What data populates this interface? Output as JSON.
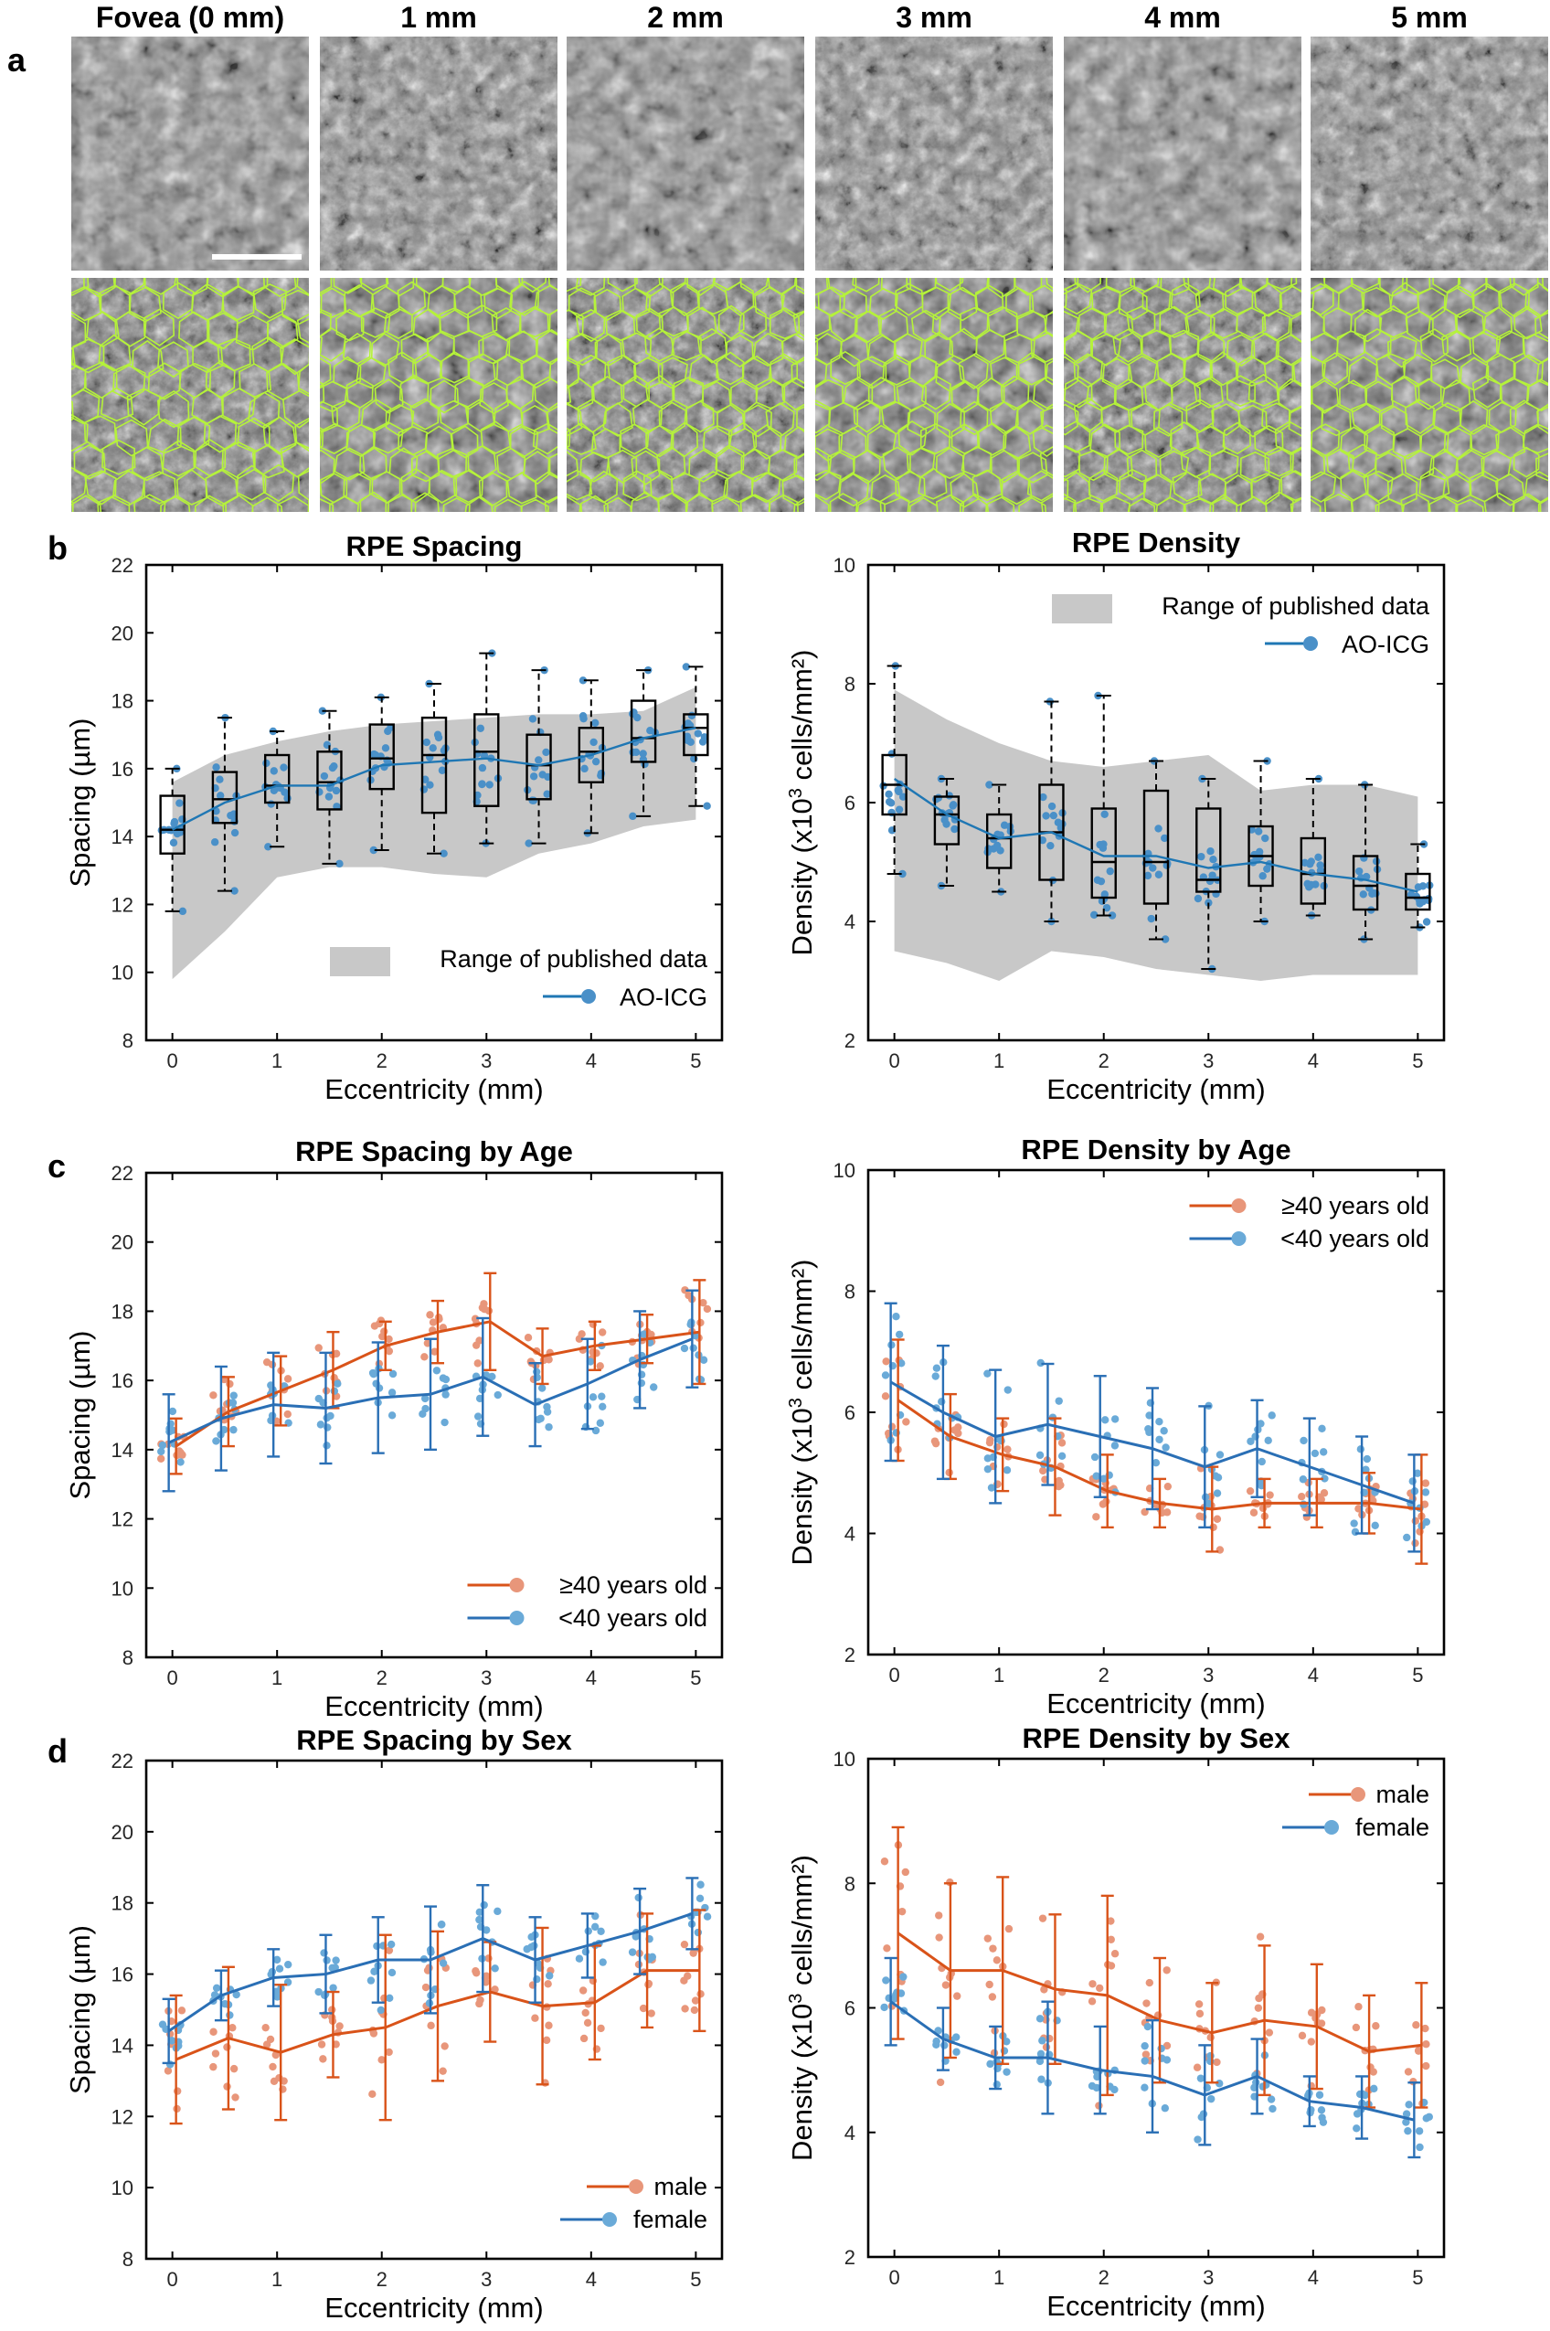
{
  "panel_labels": {
    "a": "a",
    "b": "b",
    "c": "c",
    "d": "d"
  },
  "images": {
    "column_labels": [
      "Fovea (0 mm)",
      "1 mm",
      "2 mm",
      "3 mm",
      "4 mm",
      "5 mm"
    ],
    "rows": [
      "raw",
      "segmented"
    ]
  },
  "colors": {
    "published_range": "#c8c8c8",
    "ao_icg": "#1f77b4",
    "ao_icg_point": "#4a90c8",
    "older_male": "#d95319",
    "older_male_point": "#e8967a",
    "younger_female": "#2a6fb5",
    "younger_female_point": "#6aaad8",
    "cell_border": "#b5f23a"
  },
  "chart_data": [
    {
      "id": "spacing",
      "type": "box",
      "title": "RPE Spacing",
      "xlabel": "Eccentricity (mm)",
      "ylabel": "Spacing (µm)",
      "xlim": [
        -0.25,
        5.25
      ],
      "ylim": [
        8,
        22
      ],
      "xticks": [
        0,
        1,
        2,
        3,
        4,
        5
      ],
      "yticks": [
        8,
        10,
        12,
        14,
        16,
        18,
        20,
        22
      ],
      "x": [
        0,
        0.5,
        1,
        1.5,
        2,
        2.5,
        3,
        3.5,
        4,
        4.5,
        5
      ],
      "range_low": [
        9.8,
        11.2,
        12.8,
        13.1,
        13.1,
        12.9,
        12.8,
        13.5,
        13.8,
        14.3,
        14.5
      ],
      "range_high": [
        15.6,
        16.4,
        16.8,
        17.1,
        17.3,
        17.4,
        17.5,
        17.6,
        17.6,
        17.7,
        18.4
      ],
      "median": [
        14.2,
        15.1,
        15.5,
        15.6,
        16.3,
        16.4,
        16.5,
        16.1,
        16.5,
        16.9,
        17.2
      ],
      "q1": [
        13.5,
        14.4,
        15.0,
        14.8,
        15.4,
        14.7,
        14.9,
        15.1,
        15.6,
        16.2,
        16.4
      ],
      "q3": [
        15.2,
        15.9,
        16.4,
        16.5,
        17.3,
        17.5,
        17.6,
        17.0,
        17.2,
        18.0,
        17.6
      ],
      "whisker_low": [
        11.8,
        12.4,
        13.7,
        13.2,
        13.6,
        13.5,
        13.8,
        13.8,
        14.1,
        14.6,
        14.9
      ],
      "whisker_high": [
        16.0,
        17.5,
        17.1,
        17.7,
        18.1,
        18.5,
        19.4,
        18.9,
        18.6,
        18.9,
        19.0
      ],
      "mean_line": [
        14.2,
        15.0,
        15.5,
        15.5,
        16.1,
        16.2,
        16.3,
        16.1,
        16.4,
        16.9,
        17.2
      ],
      "legend": [
        "Range of published data",
        "AO-ICG"
      ],
      "legend_position": "bottom-right"
    },
    {
      "id": "density",
      "type": "box",
      "title": "RPE Density",
      "xlabel": "Eccentricity (mm)",
      "ylabel_main": "Density (x10",
      "ylabel_sup": "3",
      "ylabel_tail": " cells/mm²)",
      "xlim": [
        -0.25,
        5.25
      ],
      "ylim": [
        2,
        10
      ],
      "xticks": [
        0,
        1,
        2,
        3,
        4,
        5
      ],
      "yticks": [
        2,
        4,
        6,
        8,
        10
      ],
      "x": [
        0,
        0.5,
        1,
        1.5,
        2,
        2.5,
        3,
        3.5,
        4,
        4.5,
        5
      ],
      "range_low": [
        3.5,
        3.3,
        3.0,
        3.5,
        3.4,
        3.2,
        3.1,
        3.0,
        3.1,
        3.1,
        3.1
      ],
      "range_high": [
        7.9,
        7.4,
        7.0,
        6.7,
        6.6,
        6.7,
        6.8,
        6.2,
        6.3,
        6.3,
        6.1
      ],
      "median": [
        6.3,
        5.8,
        5.4,
        5.5,
        5.0,
        5.0,
        4.7,
        5.1,
        4.8,
        4.6,
        4.4
      ],
      "q1": [
        5.8,
        5.3,
        4.9,
        4.7,
        4.4,
        4.3,
        4.5,
        4.6,
        4.3,
        4.2,
        4.2
      ],
      "q3": [
        6.8,
        6.1,
        5.8,
        6.3,
        5.9,
        6.2,
        5.9,
        5.6,
        5.4,
        5.1,
        4.8
      ],
      "whisker_low": [
        4.8,
        4.6,
        4.5,
        4.0,
        4.1,
        3.7,
        3.2,
        4.0,
        4.1,
        3.7,
        3.9
      ],
      "whisker_high": [
        8.3,
        6.4,
        6.3,
        7.7,
        7.8,
        6.7,
        6.4,
        6.7,
        6.4,
        6.3,
        5.3
      ],
      "mean_line": [
        6.4,
        5.8,
        5.4,
        5.5,
        5.1,
        5.1,
        4.9,
        5.0,
        4.8,
        4.7,
        4.5
      ],
      "legend": [
        "Range of published data",
        "AO-ICG"
      ],
      "legend_position": "top-right"
    },
    {
      "id": "spacing_age",
      "type": "line",
      "title": "RPE Spacing by Age",
      "xlabel": "Eccentricity (mm)",
      "ylabel": "Spacing (µm)",
      "xlim": [
        -0.25,
        5.25
      ],
      "ylim": [
        8,
        22
      ],
      "xticks": [
        0,
        1,
        2,
        3,
        4,
        5
      ],
      "yticks": [
        8,
        10,
        12,
        14,
        16,
        18,
        20,
        22
      ],
      "x": [
        0,
        0.5,
        1,
        1.5,
        2,
        2.5,
        3,
        3.5,
        4,
        4.5,
        5
      ],
      "series": [
        {
          "name": "≥40 years old",
          "color_key": "older_male",
          "values": [
            14.1,
            15.1,
            15.7,
            16.3,
            17.0,
            17.4,
            17.7,
            16.7,
            17.0,
            17.2,
            17.4
          ],
          "err": [
            0.8,
            1.0,
            1.0,
            1.1,
            0.7,
            0.9,
            1.4,
            0.8,
            0.7,
            0.7,
            1.5
          ]
        },
        {
          "name": "<40 years old",
          "color_key": "younger_female",
          "values": [
            14.2,
            14.9,
            15.3,
            15.2,
            15.5,
            15.6,
            16.1,
            15.3,
            15.9,
            16.6,
            17.2
          ],
          "err": [
            1.4,
            1.5,
            1.5,
            1.6,
            1.6,
            1.6,
            1.7,
            1.2,
            1.3,
            1.4,
            1.4
          ]
        }
      ],
      "legend_position": "bottom-right"
    },
    {
      "id": "density_age",
      "type": "line",
      "title": "RPE Density by Age",
      "xlabel": "Eccentricity (mm)",
      "ylabel_main": "Density (x10",
      "ylabel_sup": "3",
      "ylabel_tail": " cells/mm²)",
      "xlim": [
        -0.25,
        5.25
      ],
      "ylim": [
        2,
        10
      ],
      "xticks": [
        0,
        1,
        2,
        3,
        4,
        5
      ],
      "yticks": [
        2,
        4,
        6,
        8,
        10
      ],
      "x": [
        0,
        0.5,
        1,
        1.5,
        2,
        2.5,
        3,
        3.5,
        4,
        4.5,
        5
      ],
      "series": [
        {
          "name": "≥40 years old",
          "color_key": "older_male",
          "values": [
            6.2,
            5.6,
            5.3,
            5.1,
            4.7,
            4.5,
            4.4,
            4.5,
            4.5,
            4.5,
            4.4
          ],
          "err": [
            1.0,
            0.7,
            0.6,
            0.8,
            0.6,
            0.4,
            0.7,
            0.4,
            0.4,
            0.5,
            0.9
          ]
        },
        {
          "name": "<40 years old",
          "color_key": "younger_female",
          "values": [
            6.5,
            6.0,
            5.6,
            5.8,
            5.6,
            5.4,
            5.1,
            5.4,
            5.1,
            4.8,
            4.5
          ],
          "err": [
            1.3,
            1.1,
            1.1,
            1.0,
            1.0,
            1.0,
            1.0,
            0.8,
            0.8,
            0.8,
            0.8
          ]
        }
      ],
      "legend_position": "top-right"
    },
    {
      "id": "spacing_sex",
      "type": "line",
      "title": "RPE Spacing by Sex",
      "xlabel": "Eccentricity (mm)",
      "ylabel": "Spacing (µm)",
      "xlim": [
        -0.25,
        5.25
      ],
      "ylim": [
        8,
        22
      ],
      "xticks": [
        0,
        1,
        2,
        3,
        4,
        5
      ],
      "yticks": [
        8,
        10,
        12,
        14,
        16,
        18,
        20,
        22
      ],
      "x": [
        0,
        0.5,
        1,
        1.5,
        2,
        2.5,
        3,
        3.5,
        4,
        4.5,
        5
      ],
      "series": [
        {
          "name": "male",
          "color_key": "older_male",
          "values": [
            13.6,
            14.2,
            13.8,
            14.3,
            14.5,
            15.1,
            15.5,
            15.1,
            15.2,
            16.1,
            16.1
          ],
          "err": [
            1.8,
            2.0,
            1.9,
            1.2,
            2.6,
            2.1,
            1.4,
            2.2,
            1.6,
            1.6,
            1.7
          ]
        },
        {
          "name": "female",
          "color_key": "younger_female",
          "values": [
            14.4,
            15.4,
            15.9,
            16.0,
            16.4,
            16.4,
            17.0,
            16.4,
            16.8,
            17.2,
            17.7
          ],
          "err": [
            0.9,
            0.7,
            0.8,
            1.1,
            1.2,
            1.5,
            1.5,
            1.2,
            0.9,
            1.2,
            1.0
          ]
        }
      ],
      "legend_position": "bottom-right"
    },
    {
      "id": "density_sex",
      "type": "line",
      "title": "RPE Density by Sex",
      "xlabel": "Eccentricity (mm)",
      "ylabel_main": "Density (x10",
      "ylabel_sup": "3",
      "ylabel_tail": " cells/mm²)",
      "xlim": [
        -0.25,
        5.25
      ],
      "ylim": [
        2,
        10
      ],
      "xticks": [
        0,
        1,
        2,
        3,
        4,
        5
      ],
      "yticks": [
        2,
        4,
        6,
        8,
        10
      ],
      "x": [
        0,
        0.5,
        1,
        1.5,
        2,
        2.5,
        3,
        3.5,
        4,
        4.5,
        5
      ],
      "series": [
        {
          "name": "male",
          "color_key": "older_male",
          "values": [
            7.2,
            6.6,
            6.6,
            6.3,
            6.2,
            5.8,
            5.6,
            5.8,
            5.7,
            5.3,
            5.4
          ],
          "err": [
            1.7,
            1.4,
            1.5,
            1.2,
            1.6,
            1.0,
            0.8,
            1.2,
            1.0,
            0.9,
            1.0
          ]
        },
        {
          "name": "female",
          "color_key": "younger_female",
          "values": [
            6.1,
            5.5,
            5.2,
            5.2,
            5.0,
            4.9,
            4.6,
            4.9,
            4.5,
            4.4,
            4.2
          ],
          "err": [
            0.7,
            0.5,
            0.5,
            0.9,
            0.7,
            0.9,
            0.8,
            0.6,
            0.4,
            0.5,
            0.6
          ]
        }
      ],
      "legend_position": "top-right"
    }
  ]
}
